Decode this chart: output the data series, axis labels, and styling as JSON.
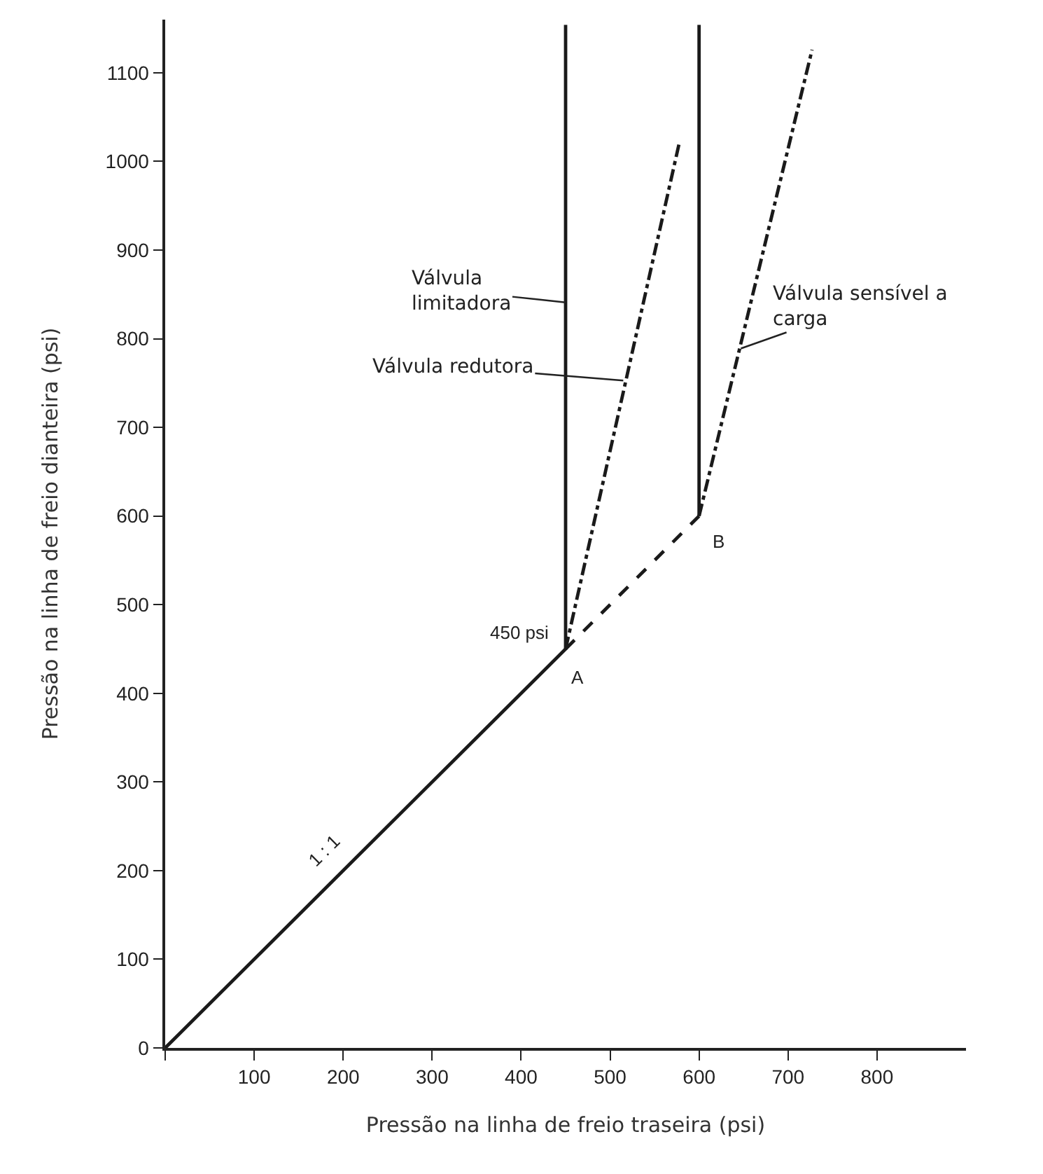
{
  "chart_data": {
    "type": "line",
    "xlabel": "Pressão na linha de freio traseira (psi)",
    "ylabel": "Pressão na linha de freio dianteira (psi)",
    "xlim": [
      0,
      900
    ],
    "xticks": [
      {
        "value": 0,
        "label": null
      },
      100,
      200,
      300,
      400,
      500,
      600,
      700,
      800
    ],
    "ylim": [
      0,
      1160
    ],
    "yticks": [
      0,
      100,
      200,
      300,
      400,
      500,
      600,
      700,
      800,
      900,
      1000,
      1100
    ],
    "grid": false,
    "marker": "none",
    "series": [
      {
        "color": "#1a1a1a",
        "line_style": "solid",
        "x": [
          0,
          450,
          450
        ],
        "values": [
          0,
          450,
          1154
        ]
      },
      {
        "color": "#1a1a1a",
        "line_style": "dashed",
        "x": [
          450,
          600
        ],
        "values": [
          450,
          600
        ]
      },
      {
        "color": "#1a1a1a",
        "line_style": "solid",
        "x": [
          600,
          600
        ],
        "values": [
          600,
          1154
        ]
      },
      {
        "color": "#1a1a1a",
        "line_style": "dashdot",
        "x": [
          450,
          578
        ],
        "values": [
          450,
          1022
        ]
      },
      {
        "color": "#1a1a1a",
        "line_style": "dashdot",
        "x": [
          600,
          727
        ],
        "values": [
          600,
          1126
        ]
      }
    ],
    "annotations": [
      {
        "text": "Válvula limitadora",
        "x": 450,
        "y": 841
      },
      "Válvula redutora",
      {
        "text": "Válvula sensível a carga",
        "x": 647,
        "y": 789
      },
      {
        "text": "450 psi",
        "x": 450,
        "y": 450
      },
      {
        "text": "A",
        "x": 450,
        "y": 450
      },
      {
        "text": "B",
        "x": 600,
        "y": 600
      },
      {
        "text": "1 : 1",
        "x": 200,
        "y": 200
      }
    ]
  }
}
